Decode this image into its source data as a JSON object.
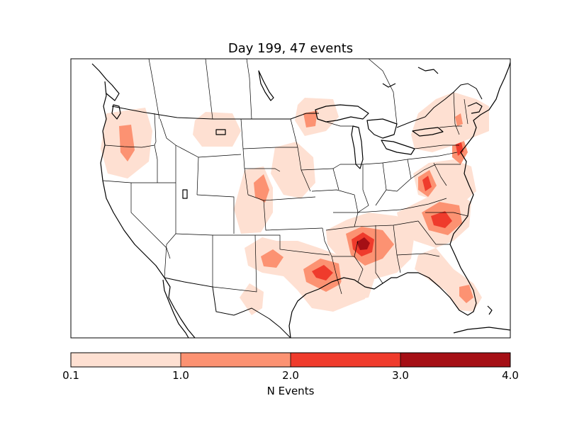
{
  "title": "Day 199, 47 events",
  "colorbar": {
    "label": "N Events",
    "ticks": [
      "0.1",
      "1.0",
      "2.0",
      "3.0",
      "4.0"
    ],
    "bins": [
      {
        "min": 0.1,
        "max": 1.0,
        "color": "#fee0d2"
      },
      {
        "min": 1.0,
        "max": 2.0,
        "color": "#fc9272"
      },
      {
        "min": 2.0,
        "max": 3.0,
        "color": "#ef3b2c"
      },
      {
        "min": 3.0,
        "max": 4.0,
        "color": "#a50f15"
      }
    ]
  },
  "map": {
    "region": "Continental United States",
    "projection": "Lambert Conformal",
    "features": [
      "coastlines",
      "country borders",
      "state borders"
    ]
  },
  "event_regions": [
    {
      "name": "pacific-northwest",
      "peak_level": 1
    },
    {
      "name": "northern-rockies",
      "peak_level": 0
    },
    {
      "name": "upper-midwest",
      "peak_level": 1
    },
    {
      "name": "northern-plains",
      "peak_level": 0
    },
    {
      "name": "central-plains",
      "peak_level": 1
    },
    {
      "name": "southern-plains",
      "peak_level": 2
    },
    {
      "name": "lower-mississippi",
      "peak_level": 3
    },
    {
      "name": "carolinas",
      "peak_level": 2
    },
    {
      "name": "mid-atlantic",
      "peak_level": 2
    },
    {
      "name": "northeast",
      "peak_level": 1
    },
    {
      "name": "florida",
      "peak_level": 1
    },
    {
      "name": "gulf-coast",
      "peak_level": 1
    }
  ]
}
